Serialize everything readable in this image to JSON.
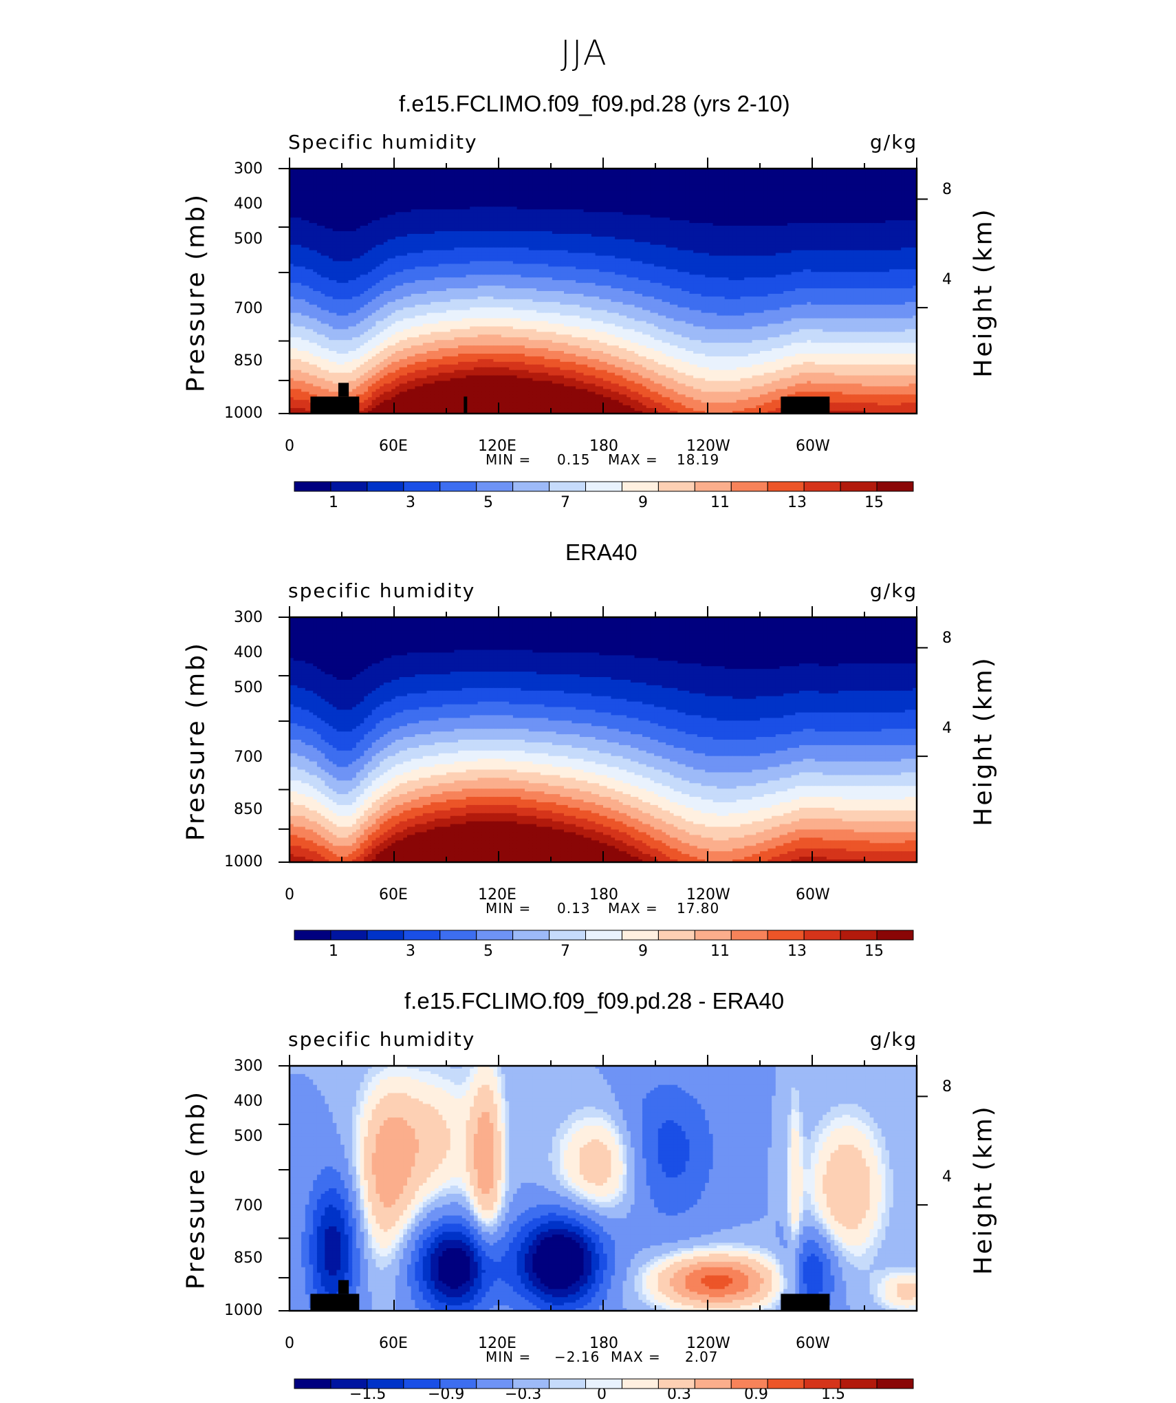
{
  "main_title": "JJA",
  "chart_data": [
    {
      "type": "heatmap",
      "title": "f.e15.FCLIMO.f09_f09.pd.28 (yrs 2-10)",
      "left_label": "Specific humidity",
      "right_label": "g/kg",
      "ylabel": "Pressure (mb)",
      "ylabel_right": "Height (km)",
      "pressure_ticks": [
        "300",
        "400",
        "500",
        "700",
        "850",
        "1000"
      ],
      "height_ticks": [
        "8",
        "4"
      ],
      "x_ticks": [
        "0",
        "60E",
        "120E",
        "180",
        "120W",
        "60W"
      ],
      "xlim": [
        0,
        360
      ],
      "min_label": "MIN =",
      "min_value": "0.15",
      "max_label": "MAX =",
      "max_value": "18.19",
      "colorbar_labels": [
        "1",
        "3",
        "5",
        "7",
        "9",
        "11",
        "13",
        "15"
      ],
      "colors": [
        "#00007f",
        "#0015a0",
        "#0033c8",
        "#1a4fe6",
        "#3d6ef0",
        "#6e93f5",
        "#9dbaf8",
        "#c6dbfb",
        "#e9f2fd",
        "#fff0e0",
        "#fdd0b4",
        "#fbae8c",
        "#f7835a",
        "#ec5528",
        "#d5341a",
        "#b21a0c",
        "#8a0606"
      ],
      "levels": [
        1,
        2,
        3,
        4,
        5,
        6,
        7,
        8,
        9,
        10,
        11,
        12,
        13,
        14,
        15,
        16
      ],
      "mask_in_plot": true
    },
    {
      "type": "heatmap",
      "title": "ERA40",
      "left_label": "specific humidity",
      "right_label": "g/kg",
      "ylabel": "Pressure (mb)",
      "ylabel_right": "Height (km)",
      "pressure_ticks": [
        "300",
        "400",
        "500",
        "700",
        "850",
        "1000"
      ],
      "height_ticks": [
        "8",
        "4"
      ],
      "x_ticks": [
        "0",
        "60E",
        "120E",
        "180",
        "120W",
        "60W"
      ],
      "xlim": [
        0,
        360
      ],
      "min_label": "MIN =",
      "min_value": "0.13",
      "max_label": "MAX =",
      "max_value": "17.80",
      "colorbar_labels": [
        "1",
        "3",
        "5",
        "7",
        "9",
        "11",
        "13",
        "15"
      ],
      "colors": [
        "#00007f",
        "#0015a0",
        "#0033c8",
        "#1a4fe6",
        "#3d6ef0",
        "#6e93f5",
        "#9dbaf8",
        "#c6dbfb",
        "#e9f2fd",
        "#fff0e0",
        "#fdd0b4",
        "#fbae8c",
        "#f7835a",
        "#ec5528",
        "#d5341a",
        "#b21a0c",
        "#8a0606"
      ],
      "levels": [
        1,
        2,
        3,
        4,
        5,
        6,
        7,
        8,
        9,
        10,
        11,
        12,
        13,
        14,
        15,
        16
      ],
      "mask_in_plot": false
    },
    {
      "type": "heatmap",
      "title": "f.e15.FCLIMO.f09_f09.pd.28 - ERA40",
      "left_label": "specific humidity",
      "right_label": "g/kg",
      "ylabel": "Pressure (mb)",
      "ylabel_right": "Height (km)",
      "pressure_ticks": [
        "300",
        "400",
        "500",
        "700",
        "850",
        "1000"
      ],
      "height_ticks": [
        "8",
        "4"
      ],
      "x_ticks": [
        "0",
        "60E",
        "120E",
        "180",
        "120W",
        "60W"
      ],
      "xlim": [
        0,
        360
      ],
      "min_label": "MIN =",
      "min_value": "−2.16",
      "max_label": "MAX =",
      "max_value": "2.07",
      "colorbar_labels": [
        "−1.5",
        "−0.9",
        "−0.3",
        "0",
        "0.3",
        "0.9",
        "1.5"
      ],
      "colors": [
        "#00007f",
        "#0015a0",
        "#0033c8",
        "#1a4fe6",
        "#3d6ef0",
        "#6e93f5",
        "#9dbaf8",
        "#c6dbfb",
        "#e9f2fd",
        "#fff0e0",
        "#fdd0b4",
        "#fbae8c",
        "#f7835a",
        "#ec5528",
        "#d5341a",
        "#b21a0c",
        "#8a0606"
      ],
      "levels": [
        -1.8,
        -1.5,
        -1.2,
        -0.9,
        -0.6,
        -0.3,
        -0.1,
        0,
        0.1,
        0.3,
        0.6,
        0.9,
        1.2,
        1.5,
        1.8,
        2.1
      ],
      "mask_in_plot": true
    }
  ]
}
